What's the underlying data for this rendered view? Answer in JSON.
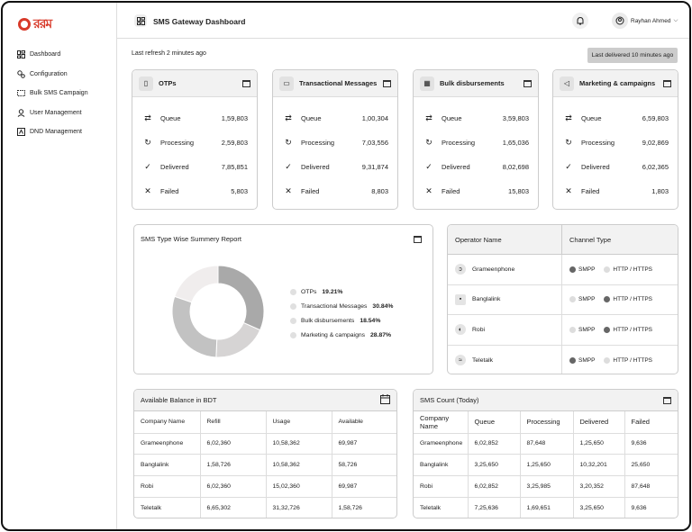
{
  "sidebar": {
    "logo_text": "ররম",
    "items": [
      {
        "label": "Dashboard",
        "icon": "dashboard-icon"
      },
      {
        "label": "Configuration",
        "icon": "configuration-icon"
      },
      {
        "label": "Bulk SMS Campaign",
        "icon": "campaign-icon"
      },
      {
        "label": "User Management",
        "icon": "user-icon"
      },
      {
        "label": "DND Management",
        "icon": "dnd-icon"
      }
    ]
  },
  "header": {
    "title": "SMS Gateway Dashboard",
    "user_name": "Rayhan Ahmed",
    "dropdown_glyph": "⌵"
  },
  "status": {
    "last_refresh": "Last refresh 2 minutes ago",
    "last_delivered": "Last delivered 10 minutes ago"
  },
  "stat_labels": {
    "queue": "Queue",
    "processing": "Processing",
    "delivered": "Delivered",
    "failed": "Failed"
  },
  "cards": [
    {
      "title": "OTPs",
      "queue": "1,59,803",
      "processing": "2,59,803",
      "delivered": "7,85,851",
      "failed": "5,803"
    },
    {
      "title": "Transactional Messages",
      "queue": "1,00,304",
      "processing": "7,03,556",
      "delivered": "9,31,874",
      "failed": "8,803"
    },
    {
      "title": "Bulk disbursements",
      "queue": "3,59,803",
      "processing": "1,65,036",
      "delivered": "8,02,698",
      "failed": "15,803"
    },
    {
      "title": "Marketing & campaigns",
      "queue": "6,59,803",
      "processing": "9,02,869",
      "delivered": "6,02,365",
      "failed": "1,803"
    }
  ],
  "summary": {
    "title": "SMS Type Wise Summery Report",
    "legend": [
      {
        "label": "OTPs",
        "value": "19.21%",
        "color": "#f0eded"
      },
      {
        "label": "Transactional Messages",
        "value": "30.84%",
        "color": "#adadad"
      },
      {
        "label": "Bulk disbursements",
        "value": "18.54%",
        "color": "#d8d6d6"
      },
      {
        "label": "Marketing & campaigns",
        "value": "28.87%",
        "color": "#c7c7c7"
      }
    ]
  },
  "chart_data": {
    "type": "pie",
    "categories": [
      "OTPs",
      "Transactional Messages",
      "Bulk disbursements",
      "Marketing & campaigns"
    ],
    "values": [
      19.21,
      30.84,
      18.54,
      28.87
    ],
    "colors": [
      "#f0eded",
      "#a9a9a9",
      "#d6d4d4",
      "#c2c2c2"
    ],
    "title": "SMS Type Wise Summery Report"
  },
  "operators": {
    "headers": [
      "Operator Name",
      "Channel Type"
    ],
    "smpp_label": "SMPP",
    "http_label": "HTTP / HTTPS",
    "rows": [
      {
        "name": "Grameenphone",
        "smpp_selected": true,
        "http_selected": false
      },
      {
        "name": "Banglalink",
        "smpp_selected": false,
        "http_selected": true
      },
      {
        "name": "Robi",
        "smpp_selected": false,
        "http_selected": true
      },
      {
        "name": "Teletalk",
        "smpp_selected": true,
        "http_selected": false
      }
    ]
  },
  "balance": {
    "title": "Available Balance in BDT",
    "headers": [
      "Company Name",
      "Refill",
      "Usage",
      "Available"
    ],
    "rows": [
      [
        "Grameenphone",
        "6,02,360",
        "10,58,362",
        "69,987"
      ],
      [
        "Banglalink",
        "1,58,726",
        "10,58,362",
        "58,726"
      ],
      [
        "Robi",
        "6,02,360",
        "15,02,360",
        "69,987"
      ],
      [
        "Teletalk",
        "6,65,302",
        "31,32,726",
        "1,58,726"
      ]
    ]
  },
  "sms_count": {
    "title": "SMS Count (Today)",
    "headers": [
      "Company Name",
      "Queue",
      "Processing",
      "Delivered",
      "Failed"
    ],
    "rows": [
      [
        "Grameenphone",
        "6,02,852",
        "87,648",
        "1,25,650",
        "9,636"
      ],
      [
        "Banglalink",
        "3,25,650",
        "1,25,650",
        "10,32,201",
        "25,650"
      ],
      [
        "Robi",
        "6,02,852",
        "3,25,985",
        "3,20,352",
        "87,648"
      ],
      [
        "Teletalk",
        "7,25,636",
        "1,69,651",
        "3,25,650",
        "9,636"
      ]
    ]
  }
}
